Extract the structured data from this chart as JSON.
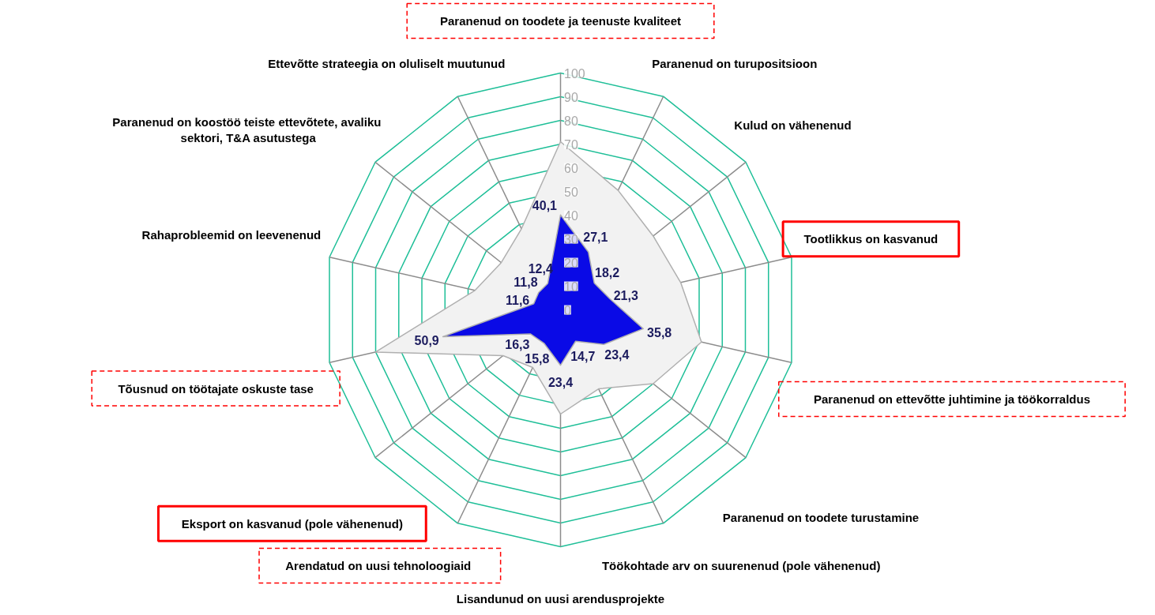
{
  "chart_data": {
    "type": "radar",
    "categories": [
      "Paranenud on toodete ja teenuste kvaliteet",
      "Paranenud on turupositsioon",
      "Kulud on vähenenud",
      "Tootlikkus on kasvanud",
      "Paranenud on ettevõtte juhtimine ja töökorraldus",
      "Paranenud on toodete turustamine",
      "Töökohtade arv on suurenenud (pole vähenenud)",
      "Lisandunud on uusi arendusprojekte",
      "Arendatud  on uusi tehnoloogiaid",
      "Eksport on kasvanud (pole vähenenud)",
      "Tõusnud on töötajate oskuste tase",
      "Rahaprobleemid on leevenenud",
      "Paranenud on  koostöö teiste ettevõtete, avaliku\nsektori, T&A asutustega",
      "Ettevõtte strateegia on oluliselt muutunud"
    ],
    "series": [
      {
        "color": "#f2f2f2",
        "values": [
          71,
          56,
          50,
          52,
          61,
          50,
          37,
          44,
          27,
          31,
          80,
          37,
          32,
          38
        ]
      },
      {
        "color": "#0a0ae6",
        "values": [
          40.1,
          27.1,
          18.2,
          21.3,
          35.8,
          23.4,
          14.7,
          23.4,
          15.8,
          16.3,
          50.9,
          11.6,
          11.8,
          12.4
        ],
        "value_labels": [
          "40,1",
          "27,1",
          "18,2",
          "21,3",
          "35,8",
          "23,4",
          "14,7",
          "23,4",
          "15,8",
          "16,3",
          "50,9",
          "11,6",
          "11,8",
          "12,4"
        ]
      }
    ],
    "ylim": [
      0,
      100
    ],
    "yticks": [
      0,
      10,
      20,
      30,
      40,
      50,
      60,
      70,
      80,
      90,
      100
    ],
    "grid": true
  }
}
